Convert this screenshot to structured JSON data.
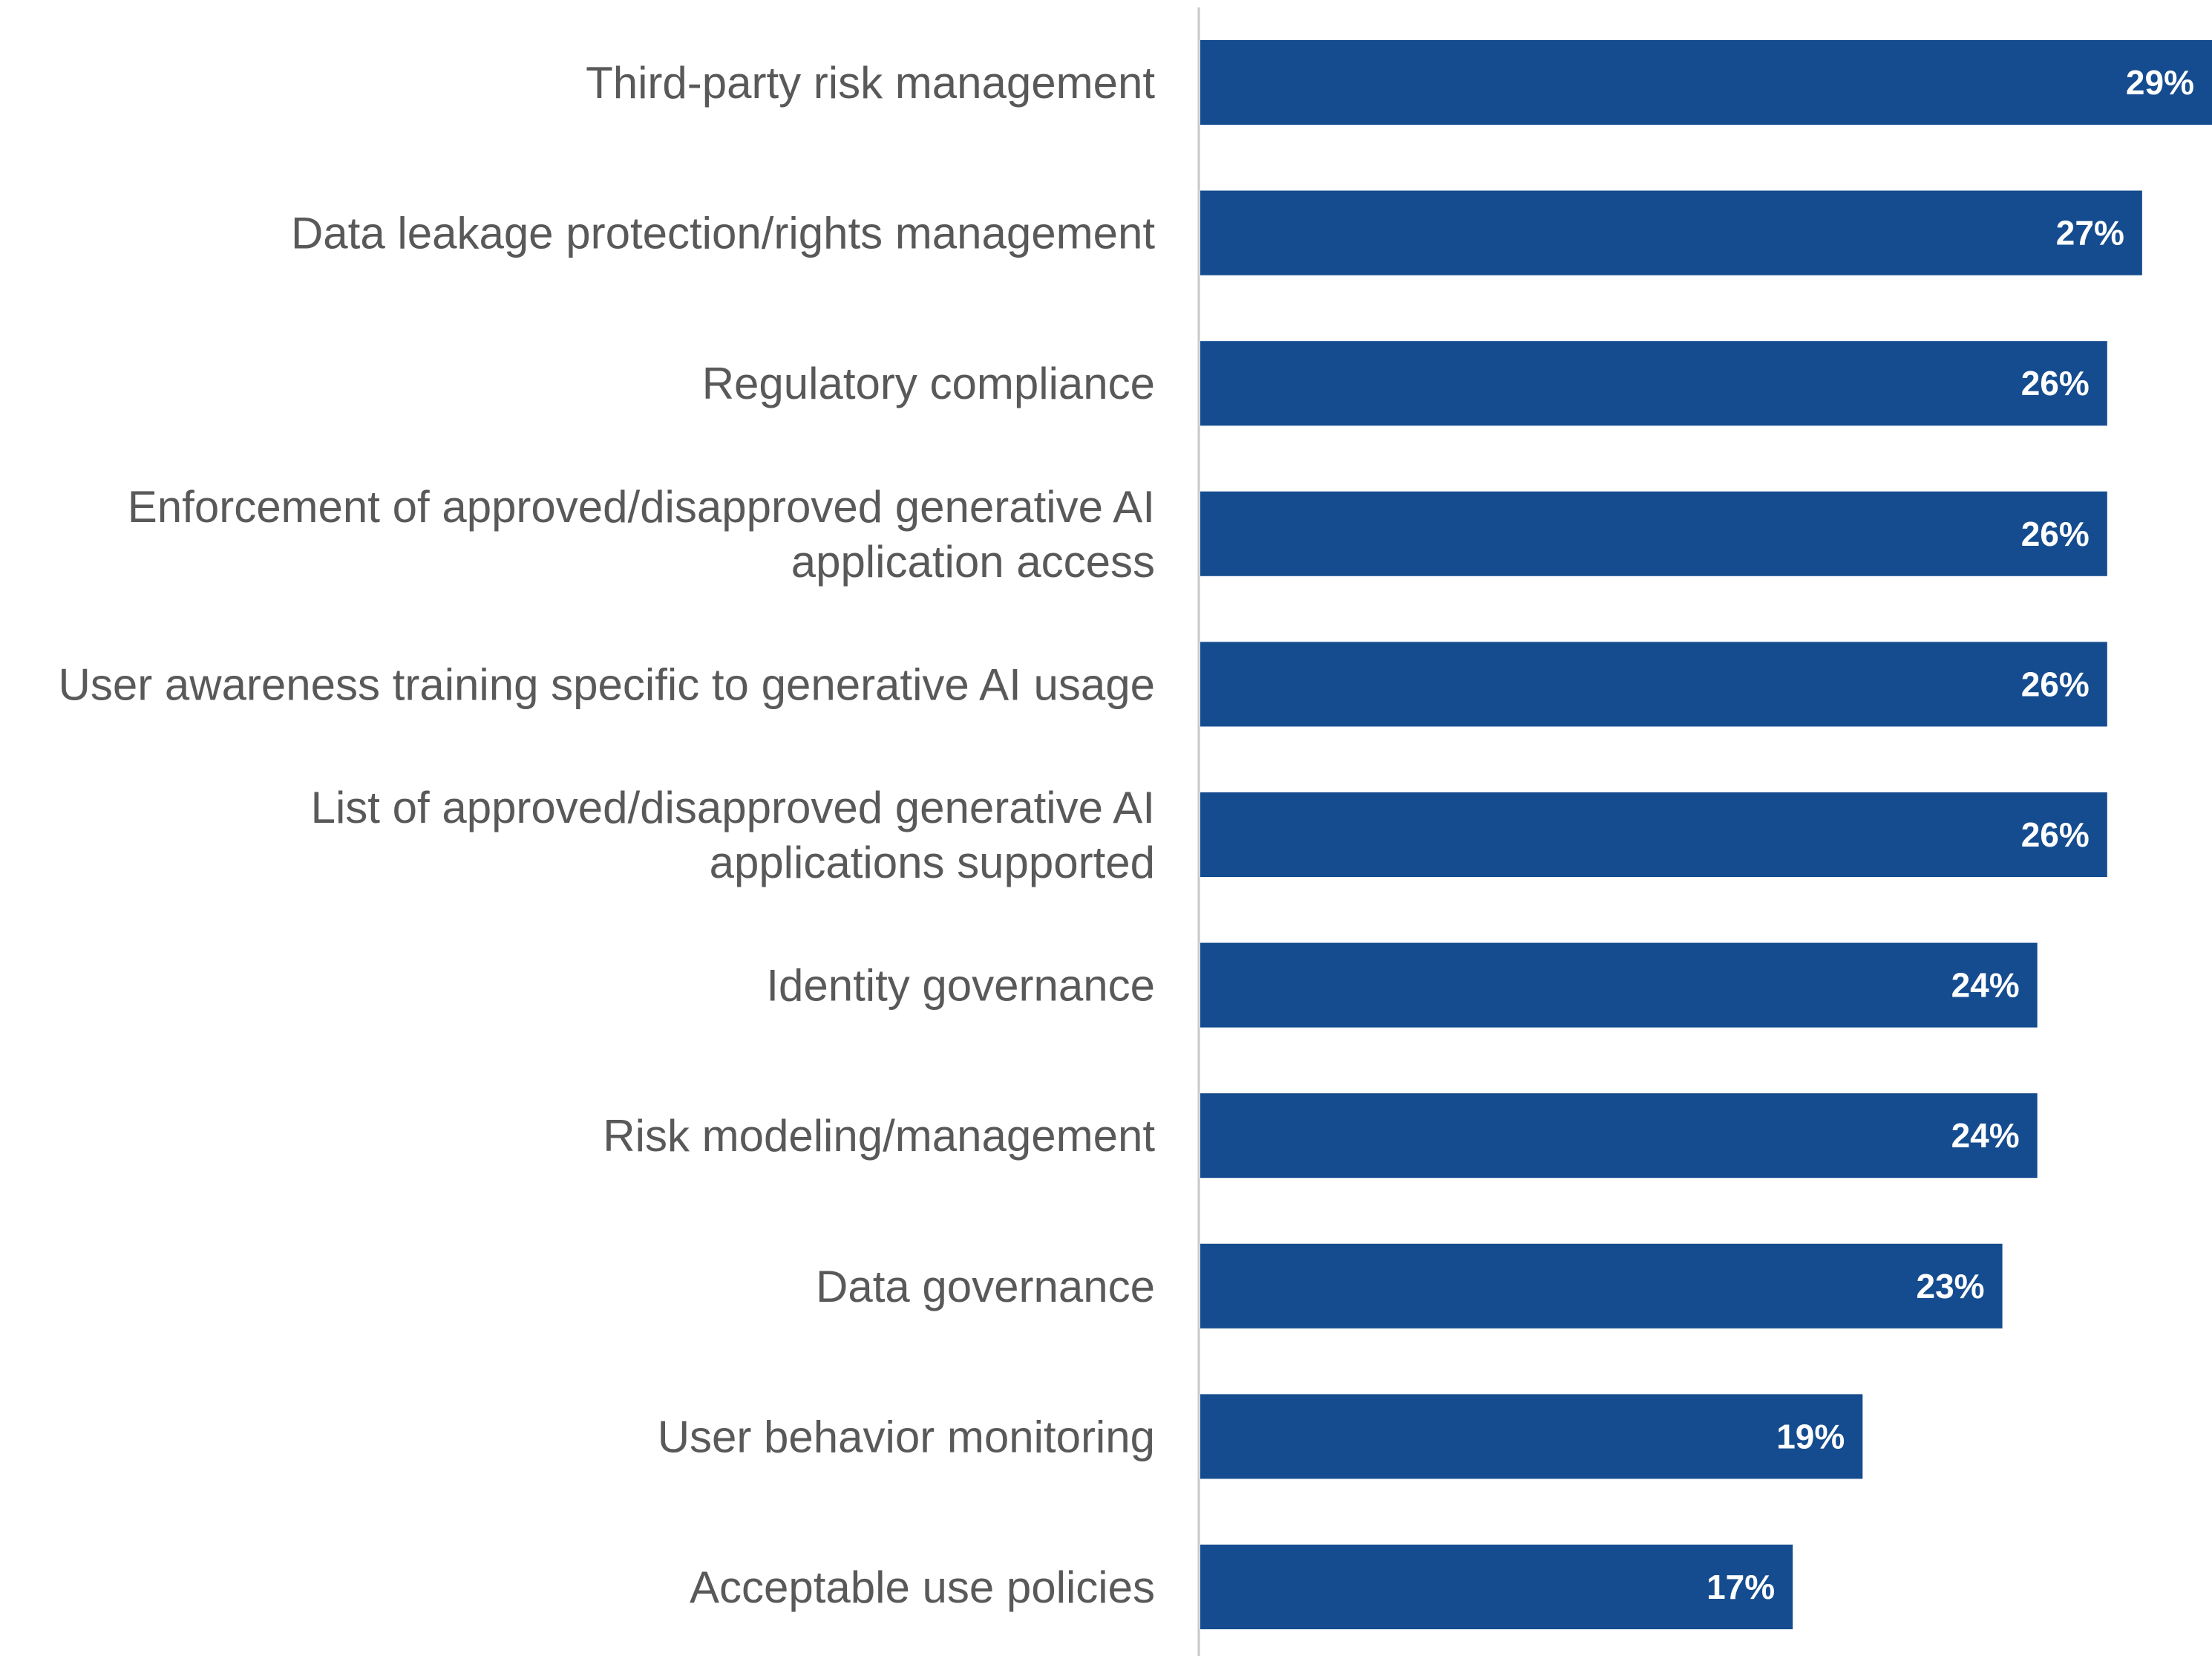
{
  "colors": {
    "bar": "#154c8f",
    "axis_line": "#c8c8c8",
    "label_text": "#595959",
    "value_text": "#ffffff",
    "background": "#ffffff"
  },
  "chart_data": {
    "type": "bar",
    "orientation": "horizontal",
    "title": "",
    "xlabel": "",
    "ylabel": "",
    "categories": [
      [
        "Third-party risk management"
      ],
      [
        "Data leakage protection/rights management"
      ],
      [
        "Regulatory compliance"
      ],
      [
        "Enforcement of approved/disapproved generative AI",
        "application access"
      ],
      [
        "User awareness training specific to generative AI usage"
      ],
      [
        "List of approved/disapproved generative AI",
        "applications supported"
      ],
      [
        "Identity governance"
      ],
      [
        "Risk modeling/management"
      ],
      [
        "Data governance"
      ],
      [
        "User behavior monitoring"
      ],
      [
        "Acceptable use policies"
      ]
    ],
    "values": [
      29,
      27,
      26,
      26,
      26,
      26,
      24,
      24,
      23,
      19,
      17
    ],
    "value_labels": [
      "29%",
      "27%",
      "26%",
      "26%",
      "26%",
      "26%",
      "24%",
      "24%",
      "23%",
      "19%",
      "17%"
    ],
    "xlim": [
      0,
      29
    ],
    "grid": false,
    "legend": "none"
  }
}
